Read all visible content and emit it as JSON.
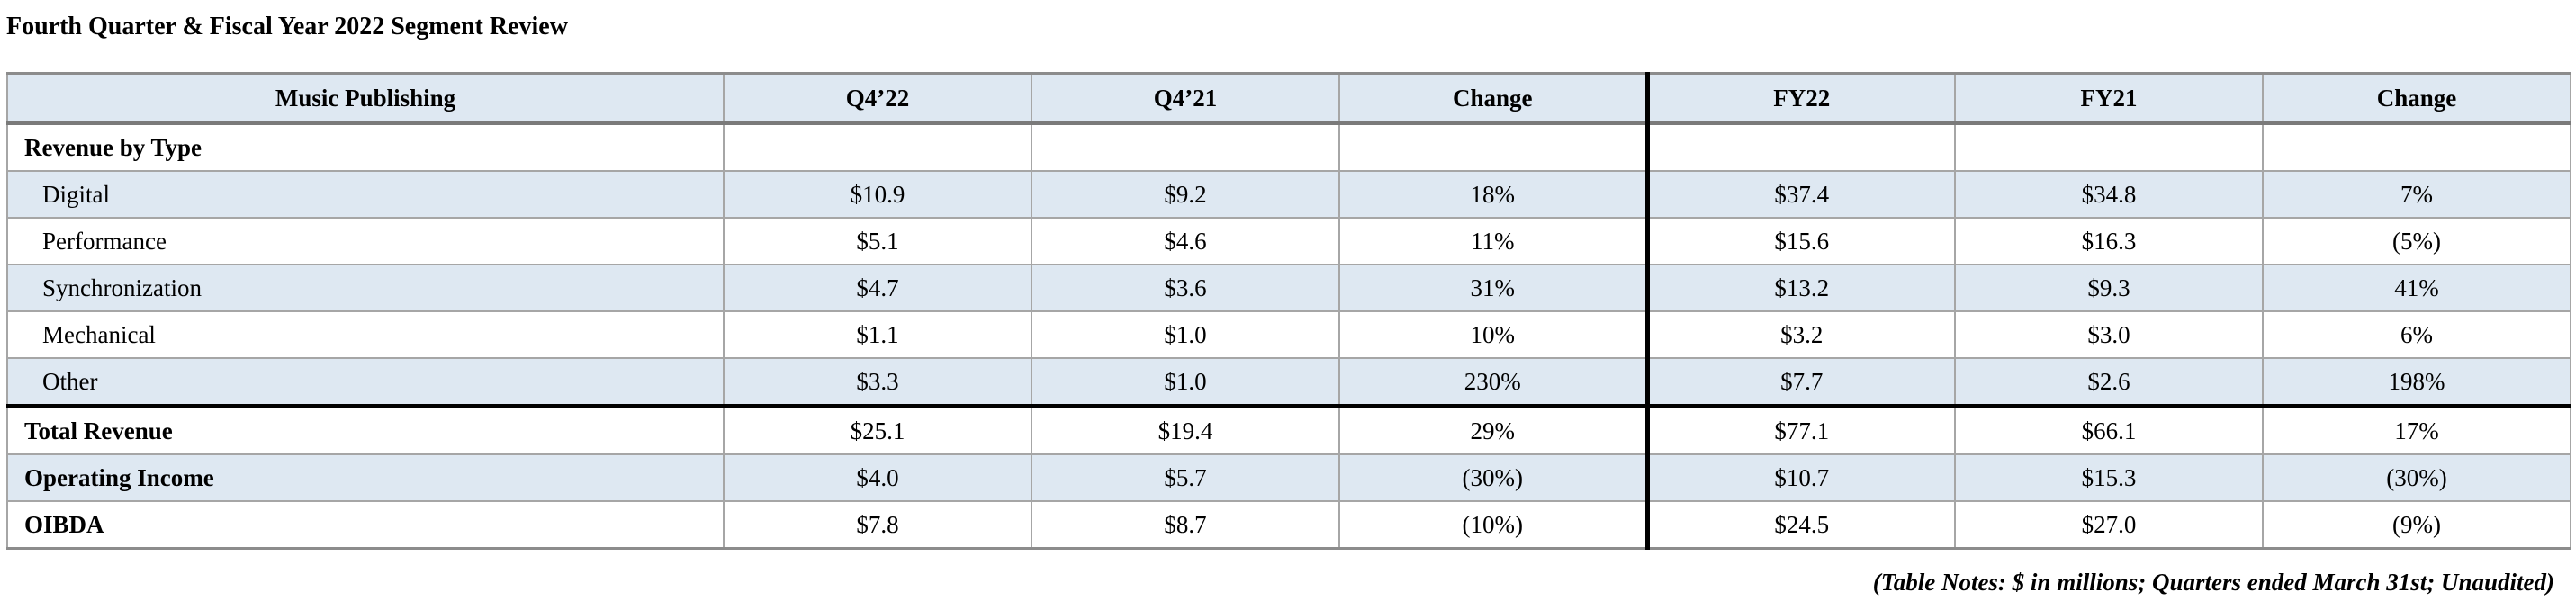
{
  "title": "Fourth Quarter & Fiscal Year 2022 Segment Review",
  "table": {
    "headers": [
      "Music Publishing",
      "Q4’22",
      "Q4’21",
      "Change",
      "FY22",
      "FY21",
      "Change"
    ],
    "section_label": "Revenue by Type",
    "type_rows": [
      {
        "label": "Digital",
        "values": [
          "$10.9",
          "$9.2",
          "18%",
          "$37.4",
          "$34.8",
          "7%"
        ]
      },
      {
        "label": "Performance",
        "values": [
          "$5.1",
          "$4.6",
          "11%",
          "$15.6",
          "$16.3",
          "(5%)"
        ]
      },
      {
        "label": "Synchronization",
        "values": [
          "$4.7",
          "$3.6",
          "31%",
          "$13.2",
          "$9.3",
          "41%"
        ]
      },
      {
        "label": "Mechanical",
        "values": [
          "$1.1",
          "$1.0",
          "10%",
          "$3.2",
          "$3.0",
          "6%"
        ]
      },
      {
        "label": "Other",
        "values": [
          "$3.3",
          "$1.0",
          "230%",
          "$7.7",
          "$2.6",
          "198%"
        ]
      }
    ],
    "summary_rows": [
      {
        "label": "Total Revenue",
        "values": [
          "$25.1",
          "$19.4",
          "29%",
          "$77.1",
          "$66.1",
          "17%"
        ]
      },
      {
        "label": "Operating Income",
        "values": [
          "$4.0",
          "$5.7",
          "(30%)",
          "$10.7",
          "$15.3",
          "(30%)"
        ]
      },
      {
        "label": "OIBDA",
        "values": [
          "$7.8",
          "$8.7",
          "(10%)",
          "$24.5",
          "$27.0",
          "(9%)"
        ]
      }
    ]
  },
  "notes": "(Table Notes: $ in millions; Quarters ended March 31st; Unaudited)"
}
